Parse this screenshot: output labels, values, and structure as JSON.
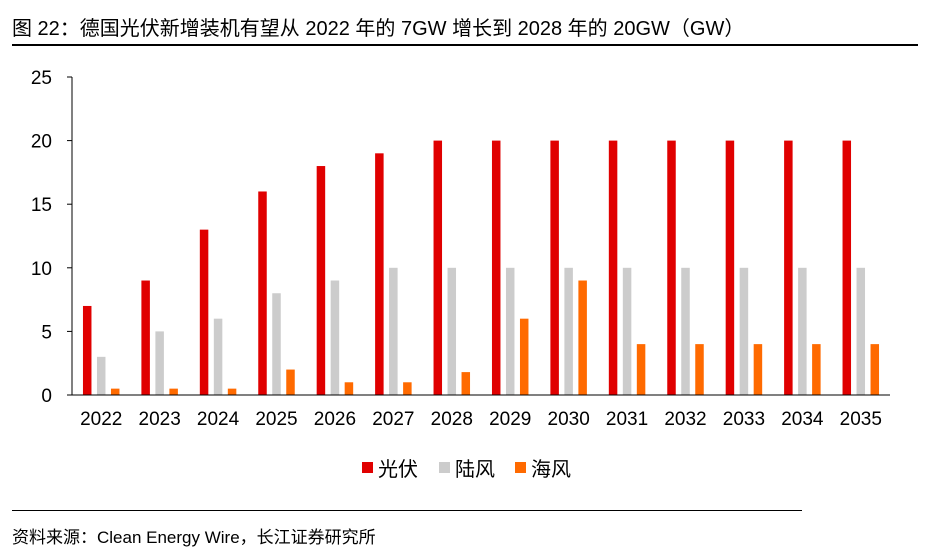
{
  "header": {
    "title": "图 22：德国光伏新增装机有望从 2022 年的 7GW 增长到 2028 年的 20GW（GW）"
  },
  "footer": {
    "source": "资料来源：Clean Energy Wire，长江证券研究所"
  },
  "colors": {
    "solar": "#e00000",
    "onshore": "#cccccc",
    "offshore": "#ff6a00"
  },
  "chart_data": {
    "type": "bar",
    "categories": [
      "2022",
      "2023",
      "2024",
      "2025",
      "2026",
      "2027",
      "2028",
      "2029",
      "2030",
      "2031",
      "2032",
      "2033",
      "2034",
      "2035"
    ],
    "series": [
      {
        "name": "光伏",
        "values": [
          7,
          9,
          13,
          16,
          18,
          19,
          20,
          20,
          20,
          20,
          20,
          20,
          20,
          20
        ]
      },
      {
        "name": "陆风",
        "values": [
          3,
          5,
          6,
          8,
          9,
          10,
          10,
          10,
          10,
          10,
          10,
          10,
          10,
          10
        ]
      },
      {
        "name": "海风",
        "values": [
          0.5,
          0.5,
          0.5,
          2,
          1,
          1,
          1.8,
          6,
          9,
          4,
          4,
          4,
          4,
          4
        ]
      }
    ],
    "ylim": [
      0,
      25
    ],
    "yticks": [
      0,
      5,
      10,
      15,
      20,
      25
    ],
    "grid": false,
    "legend": "bottom-center"
  }
}
